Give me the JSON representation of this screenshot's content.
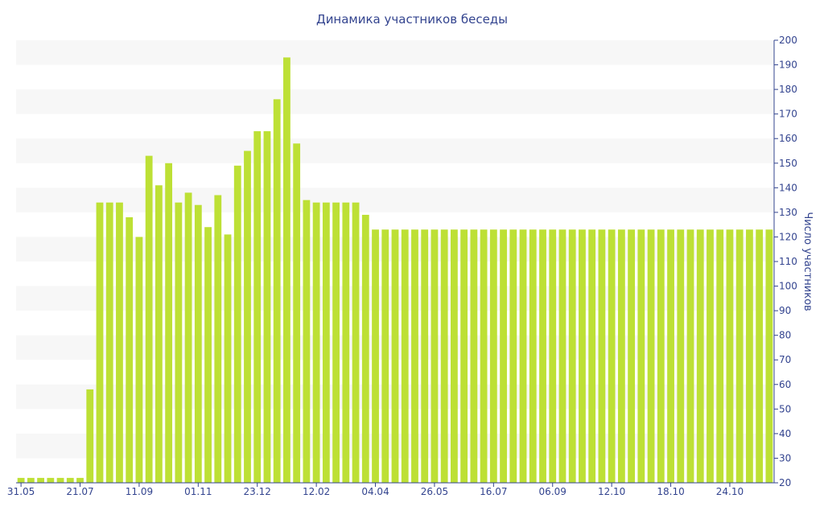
{
  "chart_data": {
    "type": "bar",
    "title": "Динамика участников беседы",
    "ylabel": "Число участников",
    "ylim": [
      20,
      200
    ],
    "y_ticks": [
      20,
      30,
      40,
      50,
      60,
      70,
      80,
      90,
      100,
      110,
      120,
      130,
      140,
      150,
      160,
      170,
      180,
      190,
      200
    ],
    "x_tick_labels": [
      "31.05",
      "21.07",
      "11.09",
      "01.11",
      "23.12",
      "12.02",
      "04.04",
      "26.05",
      "16.07",
      "06.09",
      "12.10",
      "18.10",
      "24.10"
    ],
    "x_tick_positions": [
      0,
      6,
      12,
      18,
      24,
      30,
      36,
      42,
      48,
      54,
      60,
      66,
      72
    ],
    "grid": "alternating horizontal bands",
    "bar_color": "#bde035",
    "values": [
      22,
      22,
      22,
      22,
      22,
      22,
      22,
      58,
      134,
      134,
      134,
      128,
      120,
      153,
      141,
      150,
      134,
      138,
      133,
      124,
      137,
      121,
      149,
      155,
      163,
      163,
      176,
      193,
      158,
      135,
      134,
      134,
      134,
      134,
      134,
      129,
      123,
      123,
      123,
      123,
      123,
      123,
      123,
      123,
      123,
      123,
      123,
      123,
      123,
      123,
      123,
      123,
      123,
      123,
      123,
      123,
      123,
      123,
      123,
      123,
      123,
      123,
      123,
      123,
      123,
      123,
      123,
      123,
      123,
      123,
      123,
      123,
      123,
      123,
      123,
      123,
      123
    ]
  }
}
